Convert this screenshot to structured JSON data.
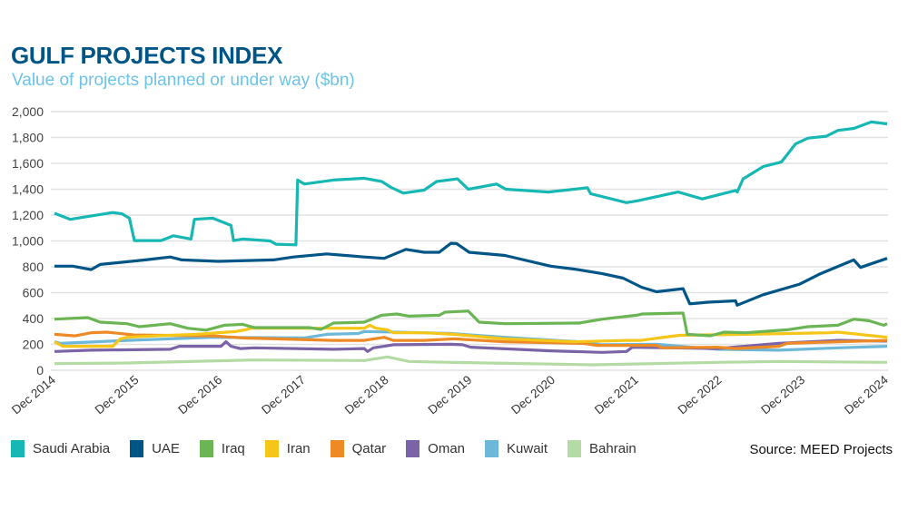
{
  "title": "GULF PROJECTS INDEX",
  "subtitle": "Value of projects planned or under way ($bn)",
  "source": "Source: MEED Projects",
  "chart_data": {
    "type": "line",
    "title": "GULF PROJECTS INDEX",
    "subtitle": "Value of projects planned or under way ($bn)",
    "xlabel": "",
    "ylabel": "",
    "x_unit": "years since Dec 2014",
    "xticks": [
      "Dec 2014",
      "Dec 2015",
      "Dec 2016",
      "Dec 2017",
      "Dec 2018",
      "Dec 2019",
      "Dec 2020",
      "Dec 2021",
      "Dec 2022",
      "Dec 2023",
      "Dec 2024"
    ],
    "yticks": [
      "0",
      "200",
      "400",
      "600",
      "800",
      "1,000",
      "1,200",
      "1,400",
      "1,600",
      "1,800",
      "2,000"
    ],
    "ylim": [
      0,
      2000
    ],
    "xlim": [
      0,
      10
    ],
    "grid": true,
    "legend": "bottom",
    "series": [
      {
        "name": "Saudi Arabia",
        "color": "#17b8b4",
        "points": [
          [
            0,
            1214
          ],
          [
            0.19,
            1167
          ],
          [
            0.41,
            1190
          ],
          [
            0.7,
            1220
          ],
          [
            0.81,
            1210
          ],
          [
            0.9,
            1176
          ],
          [
            0.96,
            1003
          ],
          [
            1.28,
            1003
          ],
          [
            1.43,
            1040
          ],
          [
            1.64,
            1015
          ],
          [
            1.68,
            1167
          ],
          [
            1.9,
            1176
          ],
          [
            2.12,
            1120
          ],
          [
            2.15,
            1003
          ],
          [
            2.26,
            1015
          ],
          [
            2.59,
            1000
          ],
          [
            2.66,
            975
          ],
          [
            2.9,
            970
          ],
          [
            2.92,
            1471
          ],
          [
            3.0,
            1440
          ],
          [
            3.35,
            1471
          ],
          [
            3.72,
            1485
          ],
          [
            3.93,
            1460
          ],
          [
            4.04,
            1415
          ],
          [
            4.19,
            1370
          ],
          [
            4.44,
            1393
          ],
          [
            4.59,
            1460
          ],
          [
            4.84,
            1480
          ],
          [
            4.97,
            1400
          ],
          [
            5.31,
            1440
          ],
          [
            5.42,
            1400
          ],
          [
            5.93,
            1378
          ],
          [
            6.4,
            1411
          ],
          [
            6.44,
            1365
          ],
          [
            6.87,
            1296
          ],
          [
            7.0,
            1310
          ],
          [
            7.49,
            1378
          ],
          [
            7.78,
            1325
          ],
          [
            8.18,
            1390
          ],
          [
            8.2,
            1378
          ],
          [
            8.27,
            1480
          ],
          [
            8.51,
            1575
          ],
          [
            8.73,
            1610
          ],
          [
            8.9,
            1750
          ],
          [
            9.05,
            1795
          ],
          [
            9.27,
            1810
          ],
          [
            9.41,
            1855
          ],
          [
            9.6,
            1870
          ],
          [
            9.81,
            1920
          ],
          [
            10,
            1905
          ]
        ]
      },
      {
        "name": "UAE",
        "color": "#005587",
        "points": [
          [
            0,
            805
          ],
          [
            0.22,
            805
          ],
          [
            0.44,
            778
          ],
          [
            0.55,
            818
          ],
          [
            1.09,
            853
          ],
          [
            1.39,
            876
          ],
          [
            1.53,
            853
          ],
          [
            1.97,
            842
          ],
          [
            2.63,
            853
          ],
          [
            2.87,
            876
          ],
          [
            3.27,
            900
          ],
          [
            3.72,
            876
          ],
          [
            3.96,
            865
          ],
          [
            4.22,
            935
          ],
          [
            4.44,
            912
          ],
          [
            4.62,
            912
          ],
          [
            4.76,
            982
          ],
          [
            4.83,
            980
          ],
          [
            4.98,
            912
          ],
          [
            5.41,
            888
          ],
          [
            5.96,
            805
          ],
          [
            6.25,
            782
          ],
          [
            6.58,
            747
          ],
          [
            6.83,
            712
          ],
          [
            7.05,
            642
          ],
          [
            7.23,
            607
          ],
          [
            7.55,
            631
          ],
          [
            7.63,
            514
          ],
          [
            7.85,
            526
          ],
          [
            8.18,
            537
          ],
          [
            8.2,
            503
          ],
          [
            8.51,
            584
          ],
          [
            8.95,
            666
          ],
          [
            9.2,
            747
          ],
          [
            9.6,
            853
          ],
          [
            9.68,
            795
          ],
          [
            10,
            865
          ]
        ]
      },
      {
        "name": "Iraq",
        "color": "#6bb554",
        "points": [
          [
            0,
            395
          ],
          [
            0.4,
            407
          ],
          [
            0.55,
            372
          ],
          [
            0.87,
            360
          ],
          [
            1.02,
            337
          ],
          [
            1.39,
            360
          ],
          [
            1.6,
            325
          ],
          [
            1.82,
            310
          ],
          [
            2.04,
            348
          ],
          [
            2.26,
            355
          ],
          [
            2.4,
            330
          ],
          [
            3.06,
            330
          ],
          [
            3.2,
            316
          ],
          [
            3.35,
            365
          ],
          [
            3.72,
            372
          ],
          [
            3.93,
            425
          ],
          [
            4.11,
            435
          ],
          [
            4.26,
            418
          ],
          [
            4.62,
            425
          ],
          [
            4.69,
            449
          ],
          [
            4.97,
            458
          ],
          [
            5.1,
            372
          ],
          [
            5.41,
            360
          ],
          [
            6.3,
            365
          ],
          [
            6.58,
            395
          ],
          [
            6.99,
            425
          ],
          [
            7.06,
            435
          ],
          [
            7.55,
            442
          ],
          [
            7.6,
            278
          ],
          [
            7.88,
            267
          ],
          [
            8.04,
            295
          ],
          [
            8.3,
            290
          ],
          [
            8.8,
            313
          ],
          [
            9.05,
            337
          ],
          [
            9.41,
            348
          ],
          [
            9.6,
            395
          ],
          [
            9.78,
            383
          ],
          [
            9.96,
            348
          ],
          [
            10,
            360
          ]
        ]
      },
      {
        "name": "Iran",
        "color": "#f5c518",
        "points": [
          [
            0,
            220
          ],
          [
            0.1,
            185
          ],
          [
            0.7,
            185
          ],
          [
            0.79,
            243
          ],
          [
            0.87,
            255
          ],
          [
            1.2,
            266
          ],
          [
            1.71,
            278
          ],
          [
            2.18,
            300
          ],
          [
            2.29,
            313
          ],
          [
            2.36,
            325
          ],
          [
            3.72,
            325
          ],
          [
            3.79,
            348
          ],
          [
            3.86,
            325
          ],
          [
            4.0,
            313
          ],
          [
            4.07,
            290
          ],
          [
            4.44,
            290
          ],
          [
            4.8,
            278
          ],
          [
            5.41,
            243
          ],
          [
            6.25,
            220
          ],
          [
            6.87,
            231
          ],
          [
            7.04,
            231
          ],
          [
            7.5,
            270
          ],
          [
            8.3,
            278
          ],
          [
            9.3,
            290
          ],
          [
            9.41,
            295
          ],
          [
            10,
            255
          ]
        ]
      },
      {
        "name": "Qatar",
        "color": "#ee8a25",
        "points": [
          [
            0,
            278
          ],
          [
            0.25,
            266
          ],
          [
            0.44,
            290
          ],
          [
            0.63,
            295
          ],
          [
            0.96,
            273
          ],
          [
            1.9,
            266
          ],
          [
            2.26,
            250
          ],
          [
            3.35,
            231
          ],
          [
            3.72,
            231
          ],
          [
            3.96,
            255
          ],
          [
            4.07,
            231
          ],
          [
            4.44,
            231
          ],
          [
            4.8,
            243
          ],
          [
            5.41,
            220
          ],
          [
            6.36,
            208
          ],
          [
            6.51,
            192
          ],
          [
            7.23,
            192
          ],
          [
            7.3,
            173
          ],
          [
            7.96,
            178
          ],
          [
            8.18,
            168
          ],
          [
            8.7,
            185
          ],
          [
            8.8,
            208
          ],
          [
            9.41,
            220
          ],
          [
            10,
            231
          ]
        ]
      },
      {
        "name": "Oman",
        "color": "#7a63a6",
        "points": [
          [
            0,
            145
          ],
          [
            0.44,
            155
          ],
          [
            1.39,
            162
          ],
          [
            1.5,
            185
          ],
          [
            2.0,
            185
          ],
          [
            2.06,
            220
          ],
          [
            2.12,
            185
          ],
          [
            2.23,
            168
          ],
          [
            2.4,
            173
          ],
          [
            3.35,
            162
          ],
          [
            3.72,
            168
          ],
          [
            3.76,
            145
          ],
          [
            3.83,
            173
          ],
          [
            3.96,
            185
          ],
          [
            4.07,
            197
          ],
          [
            4.76,
            201
          ],
          [
            4.9,
            197
          ],
          [
            5.0,
            178
          ],
          [
            5.96,
            150
          ],
          [
            6.58,
            138
          ],
          [
            6.87,
            145
          ],
          [
            6.94,
            178
          ],
          [
            7.96,
            168
          ],
          [
            8.7,
            208
          ],
          [
            9.41,
            231
          ],
          [
            10,
            225
          ]
        ]
      },
      {
        "name": "Kuwait",
        "color": "#6db8d8",
        "points": [
          [
            0,
            220
          ],
          [
            0.07,
            208
          ],
          [
            0.87,
            231
          ],
          [
            1.9,
            255
          ],
          [
            3.0,
            250
          ],
          [
            3.27,
            278
          ],
          [
            3.65,
            284
          ],
          [
            3.72,
            300
          ],
          [
            4.44,
            290
          ],
          [
            4.76,
            284
          ],
          [
            5.41,
            255
          ],
          [
            6.3,
            220
          ],
          [
            6.58,
            197
          ],
          [
            7.23,
            201
          ],
          [
            7.96,
            162
          ],
          [
            8.7,
            155
          ],
          [
            9.41,
            173
          ],
          [
            10,
            185
          ]
        ]
      },
      {
        "name": "Bahrain",
        "color": "#b5dba5",
        "points": [
          [
            0,
            51
          ],
          [
            0.87,
            56
          ],
          [
            2.38,
            79
          ],
          [
            3.72,
            75
          ],
          [
            4.0,
            103
          ],
          [
            4.26,
            68
          ],
          [
            4.76,
            61
          ],
          [
            6.47,
            42
          ],
          [
            7.96,
            61
          ],
          [
            8.7,
            68
          ],
          [
            10,
            61
          ]
        ]
      }
    ]
  }
}
